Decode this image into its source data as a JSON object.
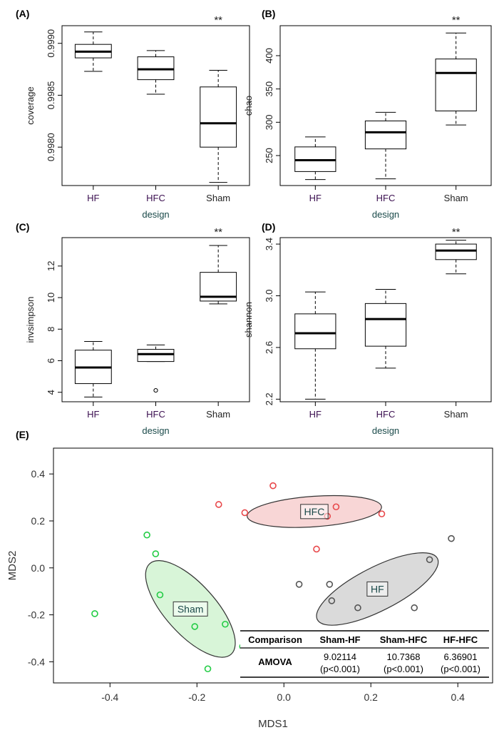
{
  "chart_data": [
    {
      "panel": "(A)",
      "type": "box",
      "xlabel": "design",
      "ylabel": "coverage",
      "categories": [
        "HF",
        "HFC",
        "Sham"
      ],
      "ylim": [
        0.99763,
        0.99917
      ],
      "yticks": [
        0.998,
        0.9985,
        0.999
      ],
      "ytick_labels": [
        "0.9980",
        "0.9985",
        "0.9990"
      ],
      "boxes": [
        {
          "name": "HF",
          "whisker_low": 0.99873,
          "q1": 0.99886,
          "median": 0.99892,
          "q3": 0.99899,
          "whisker_high": 0.99911
        },
        {
          "name": "HFC",
          "whisker_low": 0.99851,
          "q1": 0.99865,
          "median": 0.99875,
          "q3": 0.99887,
          "whisker_high": 0.99893
        },
        {
          "name": "Sham",
          "whisker_low": 0.99766,
          "q1": 0.998,
          "median": 0.99823,
          "q3": 0.99858,
          "whisker_high": 0.99874
        }
      ],
      "outliers": [],
      "annotation": {
        "category": "Sham",
        "text": "**"
      }
    },
    {
      "panel": "(B)",
      "type": "box",
      "xlabel": "design",
      "ylabel": "chao",
      "categories": [
        "HF",
        "HFC",
        "Sham"
      ],
      "ylim": [
        205,
        445
      ],
      "yticks": [
        250,
        300,
        350,
        400
      ],
      "ytick_labels": [
        "250",
        "300",
        "350",
        "400"
      ],
      "boxes": [
        {
          "name": "HF",
          "whisker_low": 214,
          "q1": 226,
          "median": 243,
          "q3": 263,
          "whisker_high": 278
        },
        {
          "name": "HFC",
          "whisker_low": 215,
          "q1": 260,
          "median": 285,
          "q3": 302,
          "whisker_high": 315
        },
        {
          "name": "Sham",
          "whisker_low": 296,
          "q1": 317,
          "median": 374,
          "q3": 395,
          "whisker_high": 434
        }
      ],
      "outliers": [],
      "annotation": {
        "category": "Sham",
        "text": "**"
      }
    },
    {
      "panel": "(C)",
      "type": "box",
      "xlabel": "design",
      "ylabel": "invsimpson",
      "categories": [
        "HF",
        "HFC",
        "Sham"
      ],
      "ylim": [
        3.4,
        13.8
      ],
      "yticks": [
        4,
        6,
        8,
        10,
        12
      ],
      "ytick_labels": [
        "4",
        "6",
        "8",
        "10",
        "12"
      ],
      "boxes": [
        {
          "name": "HF",
          "whisker_low": 3.7,
          "q1": 4.55,
          "median": 5.57,
          "q3": 6.67,
          "whisker_high": 7.22
        },
        {
          "name": "HFC",
          "whisker_low": 5.95,
          "q1": 5.95,
          "median": 6.42,
          "q3": 6.72,
          "whisker_high": 7.0
        },
        {
          "name": "Sham",
          "whisker_low": 9.6,
          "q1": 9.78,
          "median": 10.05,
          "q3": 11.6,
          "whisker_high": 13.3
        }
      ],
      "outliers": [
        {
          "category": "HFC",
          "value": 4.12
        }
      ],
      "annotation": {
        "category": "Sham",
        "text": "**"
      }
    },
    {
      "panel": "(D)",
      "type": "box",
      "xlabel": "design",
      "ylabel": "shannon",
      "categories": [
        "HF",
        "HFC",
        "Sham"
      ],
      "ylim": [
        2.18,
        3.45
      ],
      "yticks": [
        2.2,
        2.6,
        3.0,
        3.4
      ],
      "ytick_labels": [
        "2.2",
        "2.6",
        "3.0",
        "3.4"
      ],
      "boxes": [
        {
          "name": "HF",
          "whisker_low": 2.2,
          "q1": 2.59,
          "median": 2.71,
          "q3": 2.86,
          "whisker_high": 3.03
        },
        {
          "name": "HFC",
          "whisker_low": 2.44,
          "q1": 2.61,
          "median": 2.82,
          "q3": 2.94,
          "whisker_high": 3.05
        },
        {
          "name": "Sham",
          "whisker_low": 3.17,
          "q1": 3.28,
          "median": 3.35,
          "q3": 3.4,
          "whisker_high": 3.43
        }
      ],
      "outliers": [],
      "annotation": {
        "category": "Sham",
        "text": "**"
      }
    },
    {
      "panel": "(E)",
      "type": "scatter",
      "xlabel": "MDS1",
      "ylabel": "MDS2",
      "xlim": [
        -0.53,
        0.48
      ],
      "ylim": [
        -0.49,
        0.51
      ],
      "xticks": [
        -0.4,
        -0.2,
        0.0,
        0.2,
        0.4
      ],
      "xtick_labels": [
        "-0.4",
        "-0.2",
        "0.0",
        "0.2",
        "0.4"
      ],
      "yticks": [
        -0.4,
        -0.2,
        0.0,
        0.2,
        0.4
      ],
      "ytick_labels": [
        "-0.4",
        "-0.2",
        "0.0",
        "0.2",
        "0.4"
      ],
      "series": [
        {
          "name": "HFC",
          "color": "#e8474a",
          "fill": "#f8d6d6",
          "points": [
            [
              -0.15,
              0.27
            ],
            [
              -0.09,
              0.235
            ],
            [
              -0.025,
              0.35
            ],
            [
              0.1,
              0.22
            ],
            [
              0.12,
              0.26
            ],
            [
              0.225,
              0.23
            ],
            [
              0.075,
              0.08
            ]
          ],
          "ellipse": {
            "cx": 0.07,
            "cy": 0.24,
            "rx": 0.155,
            "ry": 0.035,
            "angle_deg": 4
          }
        },
        {
          "name": "HF",
          "color": "#555555",
          "fill": "#dadada",
          "points": [
            [
              0.035,
              -0.07
            ],
            [
              0.105,
              -0.07
            ],
            [
              0.11,
              -0.14
            ],
            [
              0.17,
              -0.17
            ],
            [
              0.3,
              -0.17
            ],
            [
              0.335,
              0.035
            ],
            [
              0.385,
              0.125
            ]
          ],
          "ellipse": {
            "cx": 0.215,
            "cy": -0.09,
            "rx": 0.155,
            "ry": 0.05,
            "angle_deg": 27
          }
        },
        {
          "name": "Sham",
          "color": "#22cc44",
          "fill": "#d8f5d8",
          "points": [
            [
              -0.315,
              0.14
            ],
            [
              -0.295,
              0.06
            ],
            [
              -0.285,
              -0.115
            ],
            [
              -0.205,
              -0.25
            ],
            [
              -0.135,
              -0.24
            ],
            [
              -0.095,
              -0.335
            ],
            [
              -0.175,
              -0.43
            ],
            [
              -0.435,
              -0.195
            ]
          ],
          "ellipse": {
            "cx": -0.215,
            "cy": -0.175,
            "rx": 0.14,
            "ry": 0.058,
            "angle_deg": -48
          }
        }
      ],
      "table": {
        "headers": [
          "Comparison",
          "Sham-HF",
          "Sham-HFC",
          "HF-HFC"
        ],
        "rows": [
          {
            "label": "AMOVA",
            "values": [
              "9.02114",
              "10.7368",
              "6.36901"
            ],
            "pvalues": [
              "(p<0.001)",
              "(p<0.001)",
              "(p<0.001)"
            ]
          }
        ]
      }
    }
  ]
}
